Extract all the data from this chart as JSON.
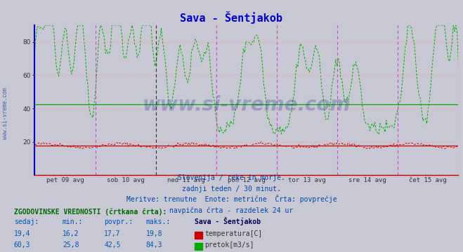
{
  "title": "Sava - Šentjakob",
  "title_color": "#0000cc",
  "bg_color": "#c8c8d4",
  "plot_bg_color": "#c8c8d4",
  "ylim": [
    0,
    90
  ],
  "yticks": [
    20,
    40,
    60,
    80
  ],
  "hgrid_color": "#ff9999",
  "hgrid_style": "dotted",
  "temp_color": "#cc0000",
  "flow_color": "#00aa00",
  "avg_temp_color": "#cc0000",
  "avg_flow_color": "#00aa00",
  "avg_temp": 17.7,
  "avg_flow": 42.5,
  "vline_color_magenta": "#cc44cc",
  "vline_color_black": "#333333",
  "left_spine_color": "#0000cc",
  "bottom_spine_color": "#cc0000",
  "watermark": "www.si-vreme.com",
  "watermark_color": "#1a3a8a",
  "side_label": "www.si-vreme.com",
  "side_label_color": "#4466aa",
  "x_labels": [
    "pet 09 avg",
    "sob 10 avg",
    "ned 11 avg",
    "pon 12 avg",
    "tor 13 avg",
    "sre 14 avg",
    "čet 15 avg"
  ],
  "subtitle1": "Slovenija / reke in morje.",
  "subtitle2": "zadnji teden / 30 minut.",
  "subtitle3": "Meritve: trenutne  Enote: metrične  Črta: povprečje",
  "subtitle4": "navpična črta - razdelek 24 ur",
  "subtitle_color": "#0044aa",
  "stats_header": "ZGODOVINSKE VREDNOSTI (črtkana črta):",
  "stats_header_color": "#006600",
  "stats_cols": [
    "sedaj:",
    "min.:",
    "povpr.:",
    "maks.:"
  ],
  "stats_col_color": "#0055bb",
  "stat_temp": [
    19.4,
    16.2,
    17.7,
    19.8
  ],
  "stat_flow": [
    60.3,
    25.8,
    42.5,
    84.3
  ],
  "legend_title": "Sava - Šentjakob",
  "legend_temp": "temperatura[C]",
  "legend_flow": "pretok[m3/s]",
  "temp_icon_color": "#cc0000",
  "flow_icon_color": "#00aa00",
  "n_points": 336,
  "temp_base": 17.7,
  "flow_base": 42.5,
  "black_vline_x": 2.0
}
